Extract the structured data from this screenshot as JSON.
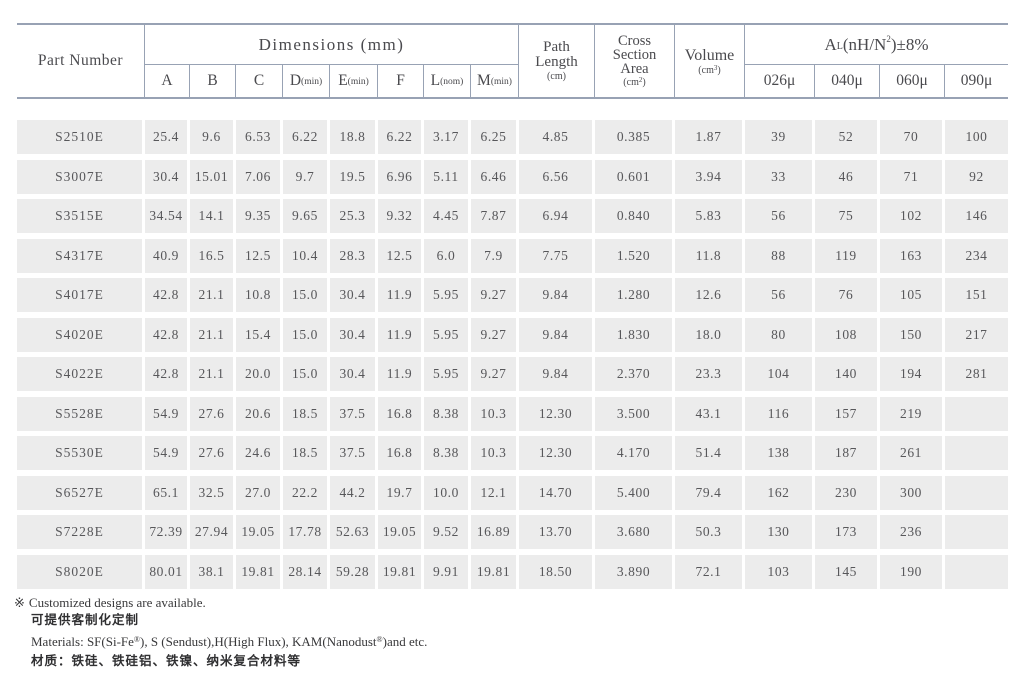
{
  "table": {
    "header": {
      "part_number": "Part Number",
      "dimensions_label": "Dimensions (mm)",
      "dim_cols": [
        {
          "main": "A",
          "sub": ""
        },
        {
          "main": "B",
          "sub": ""
        },
        {
          "main": "C",
          "sub": ""
        },
        {
          "main": "D",
          "sub": "(min)"
        },
        {
          "main": "E",
          "sub": "(min)"
        },
        {
          "main": "F",
          "sub": ""
        },
        {
          "main": "L",
          "sub": "(nom)"
        },
        {
          "main": "M",
          "sub": "(min)"
        }
      ],
      "path_length": {
        "line1": "Path",
        "line2": "Length",
        "unit_pre": "(cm",
        "unit_sup": "",
        "unit_post": ")"
      },
      "cross_section": {
        "line1": "Cross",
        "line2": "Section",
        "line3": "Area",
        "unit_pre": "(cm",
        "unit_sup": "2",
        "unit_post": ")"
      },
      "volume": {
        "name": "Volume",
        "unit_pre": "(cm",
        "unit_sup": "3",
        "unit_post": ")"
      },
      "al": {
        "pre": "A",
        "sub": "L",
        "mid": "(nH/N",
        "sup": "2",
        "post": ")±8%"
      },
      "al_cols": [
        "026μ",
        "040μ",
        "060μ",
        "090μ"
      ]
    },
    "rows": [
      [
        "S2510E",
        "25.4",
        "9.6",
        "6.53",
        "6.22",
        "18.8",
        "6.22",
        "3.17",
        "6.25",
        "4.85",
        "0.385",
        "1.87",
        "39",
        "52",
        "70",
        "100"
      ],
      [
        "S3007E",
        "30.4",
        "15.01",
        "7.06",
        "9.7",
        "19.5",
        "6.96",
        "5.11",
        "6.46",
        "6.56",
        "0.601",
        "3.94",
        "33",
        "46",
        "71",
        "92"
      ],
      [
        "S3515E",
        "34.54",
        "14.1",
        "9.35",
        "9.65",
        "25.3",
        "9.32",
        "4.45",
        "7.87",
        "6.94",
        "0.840",
        "5.83",
        "56",
        "75",
        "102",
        "146"
      ],
      [
        "S4317E",
        "40.9",
        "16.5",
        "12.5",
        "10.4",
        "28.3",
        "12.5",
        "6.0",
        "7.9",
        "7.75",
        "1.520",
        "11.8",
        "88",
        "119",
        "163",
        "234"
      ],
      [
        "S4017E",
        "42.8",
        "21.1",
        "10.8",
        "15.0",
        "30.4",
        "11.9",
        "5.95",
        "9.27",
        "9.84",
        "1.280",
        "12.6",
        "56",
        "76",
        "105",
        "151"
      ],
      [
        "S4020E",
        "42.8",
        "21.1",
        "15.4",
        "15.0",
        "30.4",
        "11.9",
        "5.95",
        "9.27",
        "9.84",
        "1.830",
        "18.0",
        "80",
        "108",
        "150",
        "217"
      ],
      [
        "S4022E",
        "42.8",
        "21.1",
        "20.0",
        "15.0",
        "30.4",
        "11.9",
        "5.95",
        "9.27",
        "9.84",
        "2.370",
        "23.3",
        "104",
        "140",
        "194",
        "281"
      ],
      [
        "S5528E",
        "54.9",
        "27.6",
        "20.6",
        "18.5",
        "37.5",
        "16.8",
        "8.38",
        "10.3",
        "12.30",
        "3.500",
        "43.1",
        "116",
        "157",
        "219",
        ""
      ],
      [
        "S5530E",
        "54.9",
        "27.6",
        "24.6",
        "18.5",
        "37.5",
        "16.8",
        "8.38",
        "10.3",
        "12.30",
        "4.170",
        "51.4",
        "138",
        "187",
        "261",
        ""
      ],
      [
        "S6527E",
        "65.1",
        "32.5",
        "27.0",
        "22.2",
        "44.2",
        "19.7",
        "10.0",
        "12.1",
        "14.70",
        "5.400",
        "79.4",
        "162",
        "230",
        "300",
        ""
      ],
      [
        "S7228E",
        "72.39",
        "27.94",
        "19.05",
        "17.78",
        "52.63",
        "19.05",
        "9.52",
        "16.89",
        "13.70",
        "3.680",
        "50.3",
        "130",
        "173",
        "236",
        ""
      ],
      [
        "S8020E",
        "80.01",
        "38.1",
        "19.81",
        "28.14",
        "59.28",
        "19.81",
        "9.91",
        "19.81",
        "18.50",
        "3.890",
        "72.1",
        "103",
        "145",
        "190",
        ""
      ]
    ]
  },
  "footer": {
    "mark": "※",
    "en1": "Customized designs are available.",
    "cn1": "可提供客制化定制",
    "mat_pre": "Materials: SF(Si-Fe",
    "mat_sup1": "®",
    "mat_mid": "), S (Sendust),H(High Flux), KAM(Nanodust",
    "mat_sup2": "®",
    "mat_post": ")and etc.",
    "cn2": "材质：铁硅、铁硅铝、铁镍、纳米复合材料等"
  }
}
